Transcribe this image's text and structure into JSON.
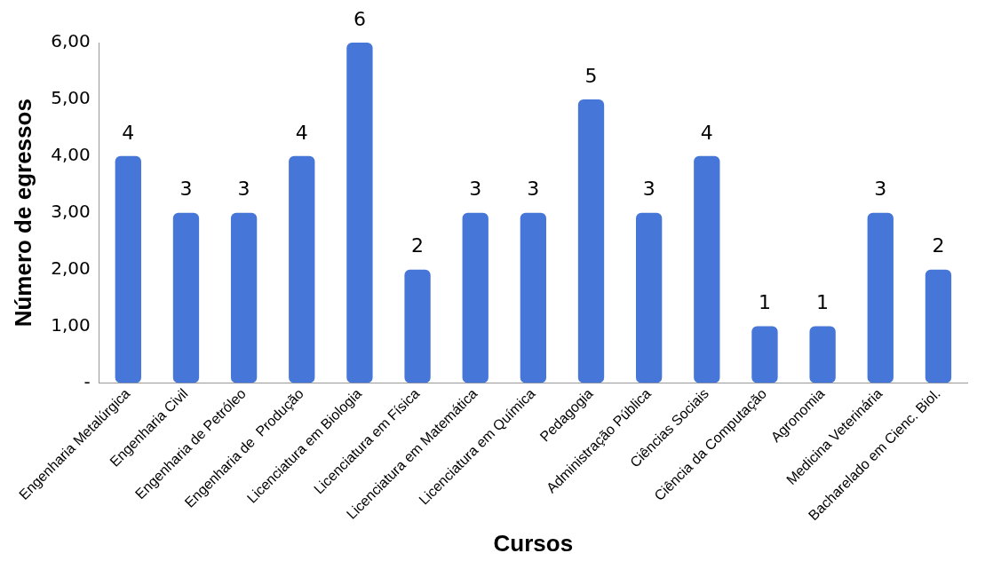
{
  "chart_data": {
    "type": "bar",
    "xlabel": "Cursos",
    "ylabel": "Número de egressos",
    "categories": [
      "Engenharia Metalúrgica",
      "Engenharia Civil",
      "Engenharia de Petróleo",
      "Engenharia de  Produção",
      "Licenciatura em Biologia",
      "Licenciatura em Física",
      "Licenciatura em Matemática",
      "Licenciatura em Química",
      "Pedagogia",
      "Administração Pública",
      "Ciências Sociais",
      "Ciência da Computação",
      "Agronomia",
      "Medicina Veterinária",
      "Bacharelado em Cienc. Biol."
    ],
    "values": [
      4,
      3,
      3,
      4,
      6,
      2,
      3,
      3,
      5,
      3,
      4,
      1,
      1,
      3,
      2
    ],
    "color": "#4677d8",
    "ylim": [
      0,
      6
    ],
    "yticks": [
      {
        "value": 0,
        "label": "-"
      },
      {
        "value": 1,
        "label": "1,00"
      },
      {
        "value": 2,
        "label": "2,00"
      },
      {
        "value": 3,
        "label": "3,00"
      },
      {
        "value": 4,
        "label": "4,00"
      },
      {
        "value": 5,
        "label": "5,00"
      },
      {
        "value": 6,
        "label": "6,00"
      }
    ],
    "data_labels": true,
    "grid": false,
    "legend": false
  }
}
